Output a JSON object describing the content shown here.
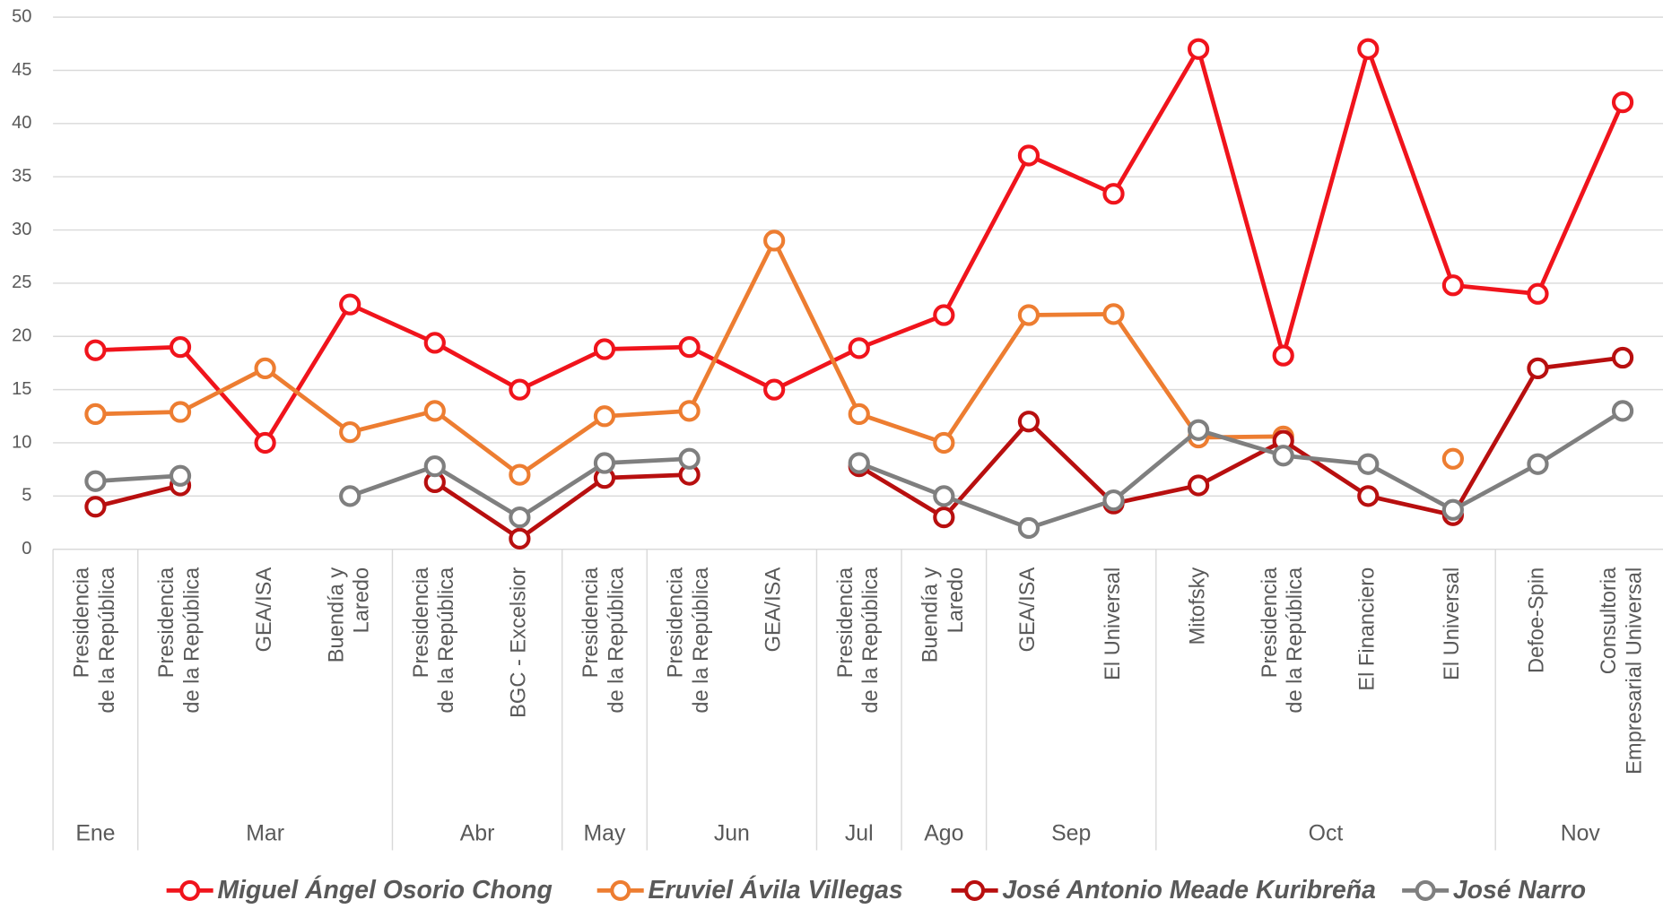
{
  "chart_data": {
    "type": "line",
    "categories": [
      [
        "Presidencia",
        "de la República"
      ],
      [
        "Presidencia",
        "de la República"
      ],
      [
        "GEA/ISA"
      ],
      [
        "Buendía y",
        "Laredo"
      ],
      [
        "Presidencia",
        "de la República"
      ],
      [
        "BGC - Excelsior"
      ],
      [
        "Presidencia",
        "de la República"
      ],
      [
        "Presidencia",
        "de la República"
      ],
      [
        "GEA/ISA"
      ],
      [
        "Presidencia",
        "de la República"
      ],
      [
        "Buendía y",
        "Laredo"
      ],
      [
        "GEA/ISA"
      ],
      [
        "El Universal"
      ],
      [
        "Mitofsky"
      ],
      [
        "Presidencia",
        "de la República"
      ],
      [
        "El Financiero"
      ],
      [
        "El Universal"
      ],
      [
        "Defoe-Spin"
      ],
      [
        "Consultoria",
        "Empresarial Universal"
      ]
    ],
    "groups": [
      {
        "label": "Ene",
        "span": 1
      },
      {
        "label": "Mar",
        "span": 3
      },
      {
        "label": "Abr",
        "span": 2
      },
      {
        "label": "May",
        "span": 1
      },
      {
        "label": "Jun",
        "span": 2
      },
      {
        "label": "Jul",
        "span": 1
      },
      {
        "label": "Ago",
        "span": 1
      },
      {
        "label": "Sep",
        "span": 2
      },
      {
        "label": "Oct",
        "span": 4
      },
      {
        "label": "Nov",
        "span": 2
      }
    ],
    "series": [
      {
        "name": "Miguel Ángel Osorio Chong",
        "color": "#f0141c",
        "values": [
          18.7,
          19,
          10,
          23,
          19.4,
          15,
          18.8,
          19,
          15,
          18.9,
          22,
          37,
          33.4,
          47,
          18.2,
          47,
          24.8,
          24,
          42
        ]
      },
      {
        "name": "Eruviel Ávila Villegas",
        "color": "#ed7d31",
        "values": [
          12.7,
          12.9,
          17,
          11,
          13,
          7,
          12.5,
          13,
          29,
          12.7,
          10,
          22,
          22.1,
          10.5,
          10.6,
          null,
          8.5,
          null,
          null
        ]
      },
      {
        "name": "José Antonio Meade Kuribreña",
        "color": "#b80f0f",
        "values": [
          4,
          6,
          null,
          null,
          6.3,
          1,
          6.7,
          7,
          null,
          7.8,
          3,
          12,
          4.3,
          6,
          10.2,
          5,
          3.2,
          17,
          18
        ]
      },
      {
        "name": "José Narro",
        "color": "#7f7f7f",
        "values": [
          6.4,
          6.9,
          null,
          5,
          7.8,
          3,
          8.1,
          8.5,
          null,
          8.1,
          5,
          2,
          4.6,
          11.2,
          8.8,
          8,
          3.7,
          8,
          13
        ]
      }
    ],
    "ylim": [
      0,
      50
    ],
    "yticks": [
      0,
      5,
      10,
      15,
      20,
      25,
      30,
      35,
      40,
      45,
      50
    ],
    "grid": true,
    "legend": "bottom"
  }
}
